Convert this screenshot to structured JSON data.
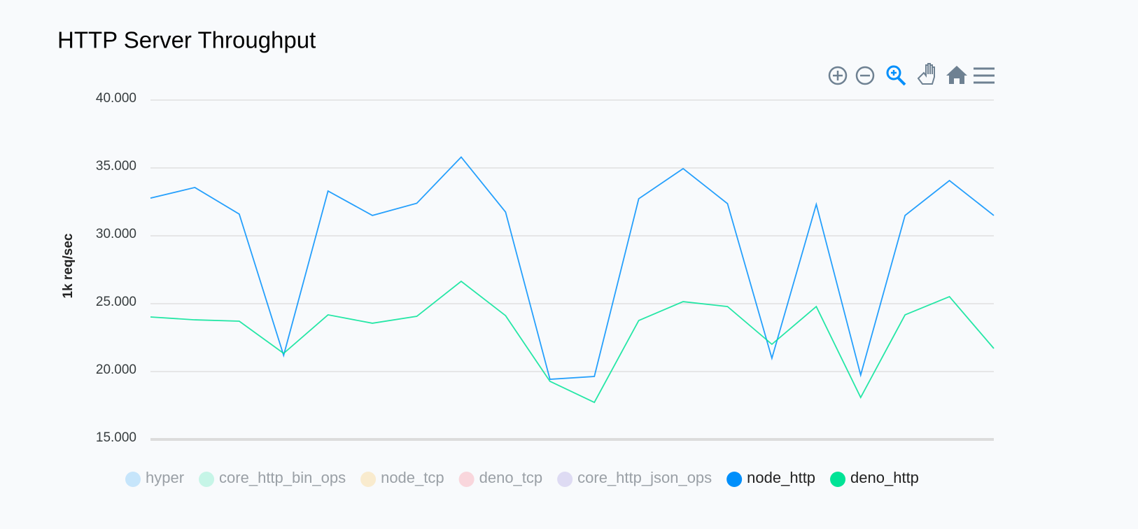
{
  "chart_data": {
    "type": "line",
    "title": "HTTP Server Throughput",
    "y_label": "1k req/sec",
    "categories": [
      null,
      null,
      null,
      null,
      null,
      null,
      null,
      null,
      null,
      null,
      null,
      null,
      null,
      null,
      null,
      null,
      null,
      null,
      null,
      null
    ],
    "series": [
      {
        "name": "node_http",
        "color": "#008ffb",
        "values": [
          32.78,
          33.56,
          31.6,
          21.19,
          33.3,
          31.5,
          32.4,
          35.8,
          31.75,
          19.43,
          19.64,
          32.73,
          34.95,
          32.37,
          20.98,
          32.32,
          19.74,
          31.5,
          34.07,
          31.5
        ]
      },
      {
        "name": "deno_http",
        "color": "#00e396",
        "values": [
          24.02,
          23.81,
          23.71,
          21.34,
          24.18,
          23.56,
          24.07,
          26.65,
          24.12,
          19.28,
          17.73,
          23.76,
          25.15,
          24.79,
          22.01,
          24.79,
          18.09,
          24.18,
          25.52,
          21.7
        ]
      }
    ],
    "hidden_series": [
      {
        "name": "hyper",
        "color": "#008ffb"
      },
      {
        "name": "core_http_bin_ops",
        "color": "#00e396"
      },
      {
        "name": "node_tcp",
        "color": "#feb019"
      },
      {
        "name": "deno_tcp",
        "color": "#ff4560"
      },
      {
        "name": "core_http_json_ops",
        "color": "#775dd0"
      }
    ],
    "ylim": [
      15,
      40
    ],
    "yticks": [
      {
        "value": 15,
        "label": "15.000"
      },
      {
        "value": 20,
        "label": "20.000"
      },
      {
        "value": 25,
        "label": "25.000"
      },
      {
        "value": 30,
        "label": "30.000"
      },
      {
        "value": 35,
        "label": "35.000"
      },
      {
        "value": 40,
        "label": "40.000"
      }
    ],
    "grid": true
  }
}
